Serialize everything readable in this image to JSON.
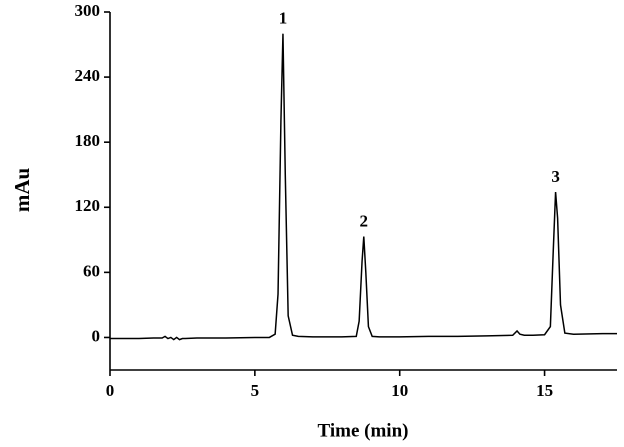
{
  "chart_data": {
    "type": "line",
    "x_label": "Time (min)",
    "y_label": "mAu",
    "color": "#000000",
    "x": [
      0,
      0.5,
      1,
      1.5,
      1.8,
      1.9,
      2.0,
      2.1,
      2.2,
      2.3,
      2.4,
      2.5,
      2.6,
      3,
      4,
      5,
      5.5,
      5.7,
      5.8,
      5.9,
      5.97,
      6.05,
      6.15,
      6.3,
      6.5,
      7,
      8,
      8.5,
      8.6,
      8.7,
      8.76,
      8.83,
      8.92,
      9.05,
      9.3,
      10,
      11,
      12,
      13,
      13.9,
      14.05,
      14.15,
      14.3,
      14.6,
      15,
      15.2,
      15.3,
      15.38,
      15.45,
      15.55,
      15.7,
      16,
      17,
      17.5
    ],
    "values": [
      -1,
      -1,
      -1,
      -0.5,
      -0.5,
      1,
      -1,
      0,
      -2,
      0,
      -2,
      -1,
      -1,
      -0.5,
      -0.5,
      0,
      0,
      3,
      40,
      200,
      280,
      150,
      20,
      2,
      1,
      0.5,
      0.5,
      1,
      15,
      70,
      93,
      60,
      10,
      1,
      0.5,
      0.5,
      1,
      1,
      1.5,
      2,
      6,
      3,
      2,
      2,
      2.5,
      10,
      80,
      134,
      110,
      30,
      4,
      3,
      3.5,
      3.5
    ],
    "annotations": [
      {
        "text": "1",
        "x": 5.97,
        "y": 280
      },
      {
        "text": "2",
        "x": 8.76,
        "y": 93
      },
      {
        "text": "3",
        "x": 15.38,
        "y": 134
      }
    ],
    "xlim": [
      0,
      17.5
    ],
    "xticks": [
      0,
      5,
      10,
      15
    ],
    "ylim": [
      -30,
      300
    ],
    "yticks": [
      0,
      60,
      120,
      180,
      240,
      300
    ]
  }
}
